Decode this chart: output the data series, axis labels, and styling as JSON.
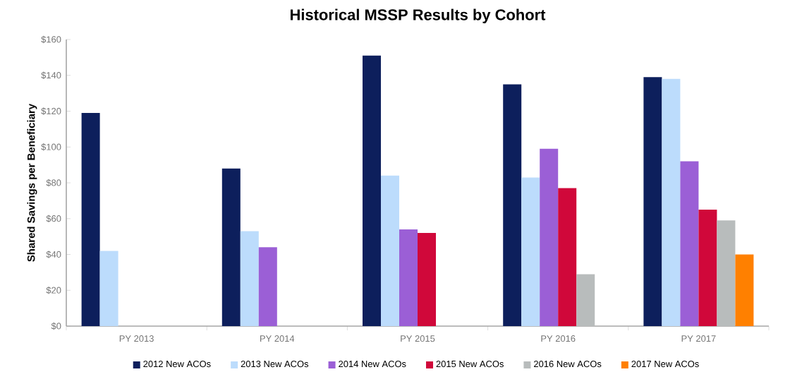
{
  "chart_data": {
    "type": "bar",
    "title": "Historical MSSP Results by Cohort",
    "ylabel": "Shared Savings per Beneficiary",
    "categories": [
      "PY 2013",
      "PY 2014",
      "PY 2015",
      "PY 2016",
      "PY 2017"
    ],
    "series": [
      {
        "name": "2012 New ACOs",
        "color": "#0d1f5c",
        "values": [
          119,
          88,
          151,
          135,
          139
        ]
      },
      {
        "name": "2013 New ACOs",
        "color": "#bcdcfc",
        "values": [
          42,
          53,
          84,
          83,
          138
        ]
      },
      {
        "name": "2014 New ACOs",
        "color": "#9b5fd6",
        "values": [
          null,
          44,
          54,
          99,
          92
        ]
      },
      {
        "name": "2015 New ACOs",
        "color": "#d0083a",
        "values": [
          null,
          null,
          52,
          77,
          65
        ]
      },
      {
        "name": "2016 New ACOs",
        "color": "#b8bcbc",
        "values": [
          null,
          null,
          null,
          29,
          59
        ]
      },
      {
        "name": "2017 New ACOs",
        "color": "#ff8000",
        "values": [
          null,
          null,
          null,
          null,
          40
        ]
      }
    ],
    "ylim": [
      0,
      160
    ],
    "yticks": [
      {
        "value": 0,
        "label": "$0"
      },
      {
        "value": 20,
        "label": "$20"
      },
      {
        "value": 40,
        "label": "$40"
      },
      {
        "value": 60,
        "label": "$60"
      },
      {
        "value": 80,
        "label": "$80"
      },
      {
        "value": 100,
        "label": "$100"
      },
      {
        "value": 120,
        "label": "$120"
      },
      {
        "value": 140,
        "label": "$140"
      },
      {
        "value": 160,
        "label": "$160"
      }
    ],
    "grid": false,
    "legend": "bottom"
  }
}
